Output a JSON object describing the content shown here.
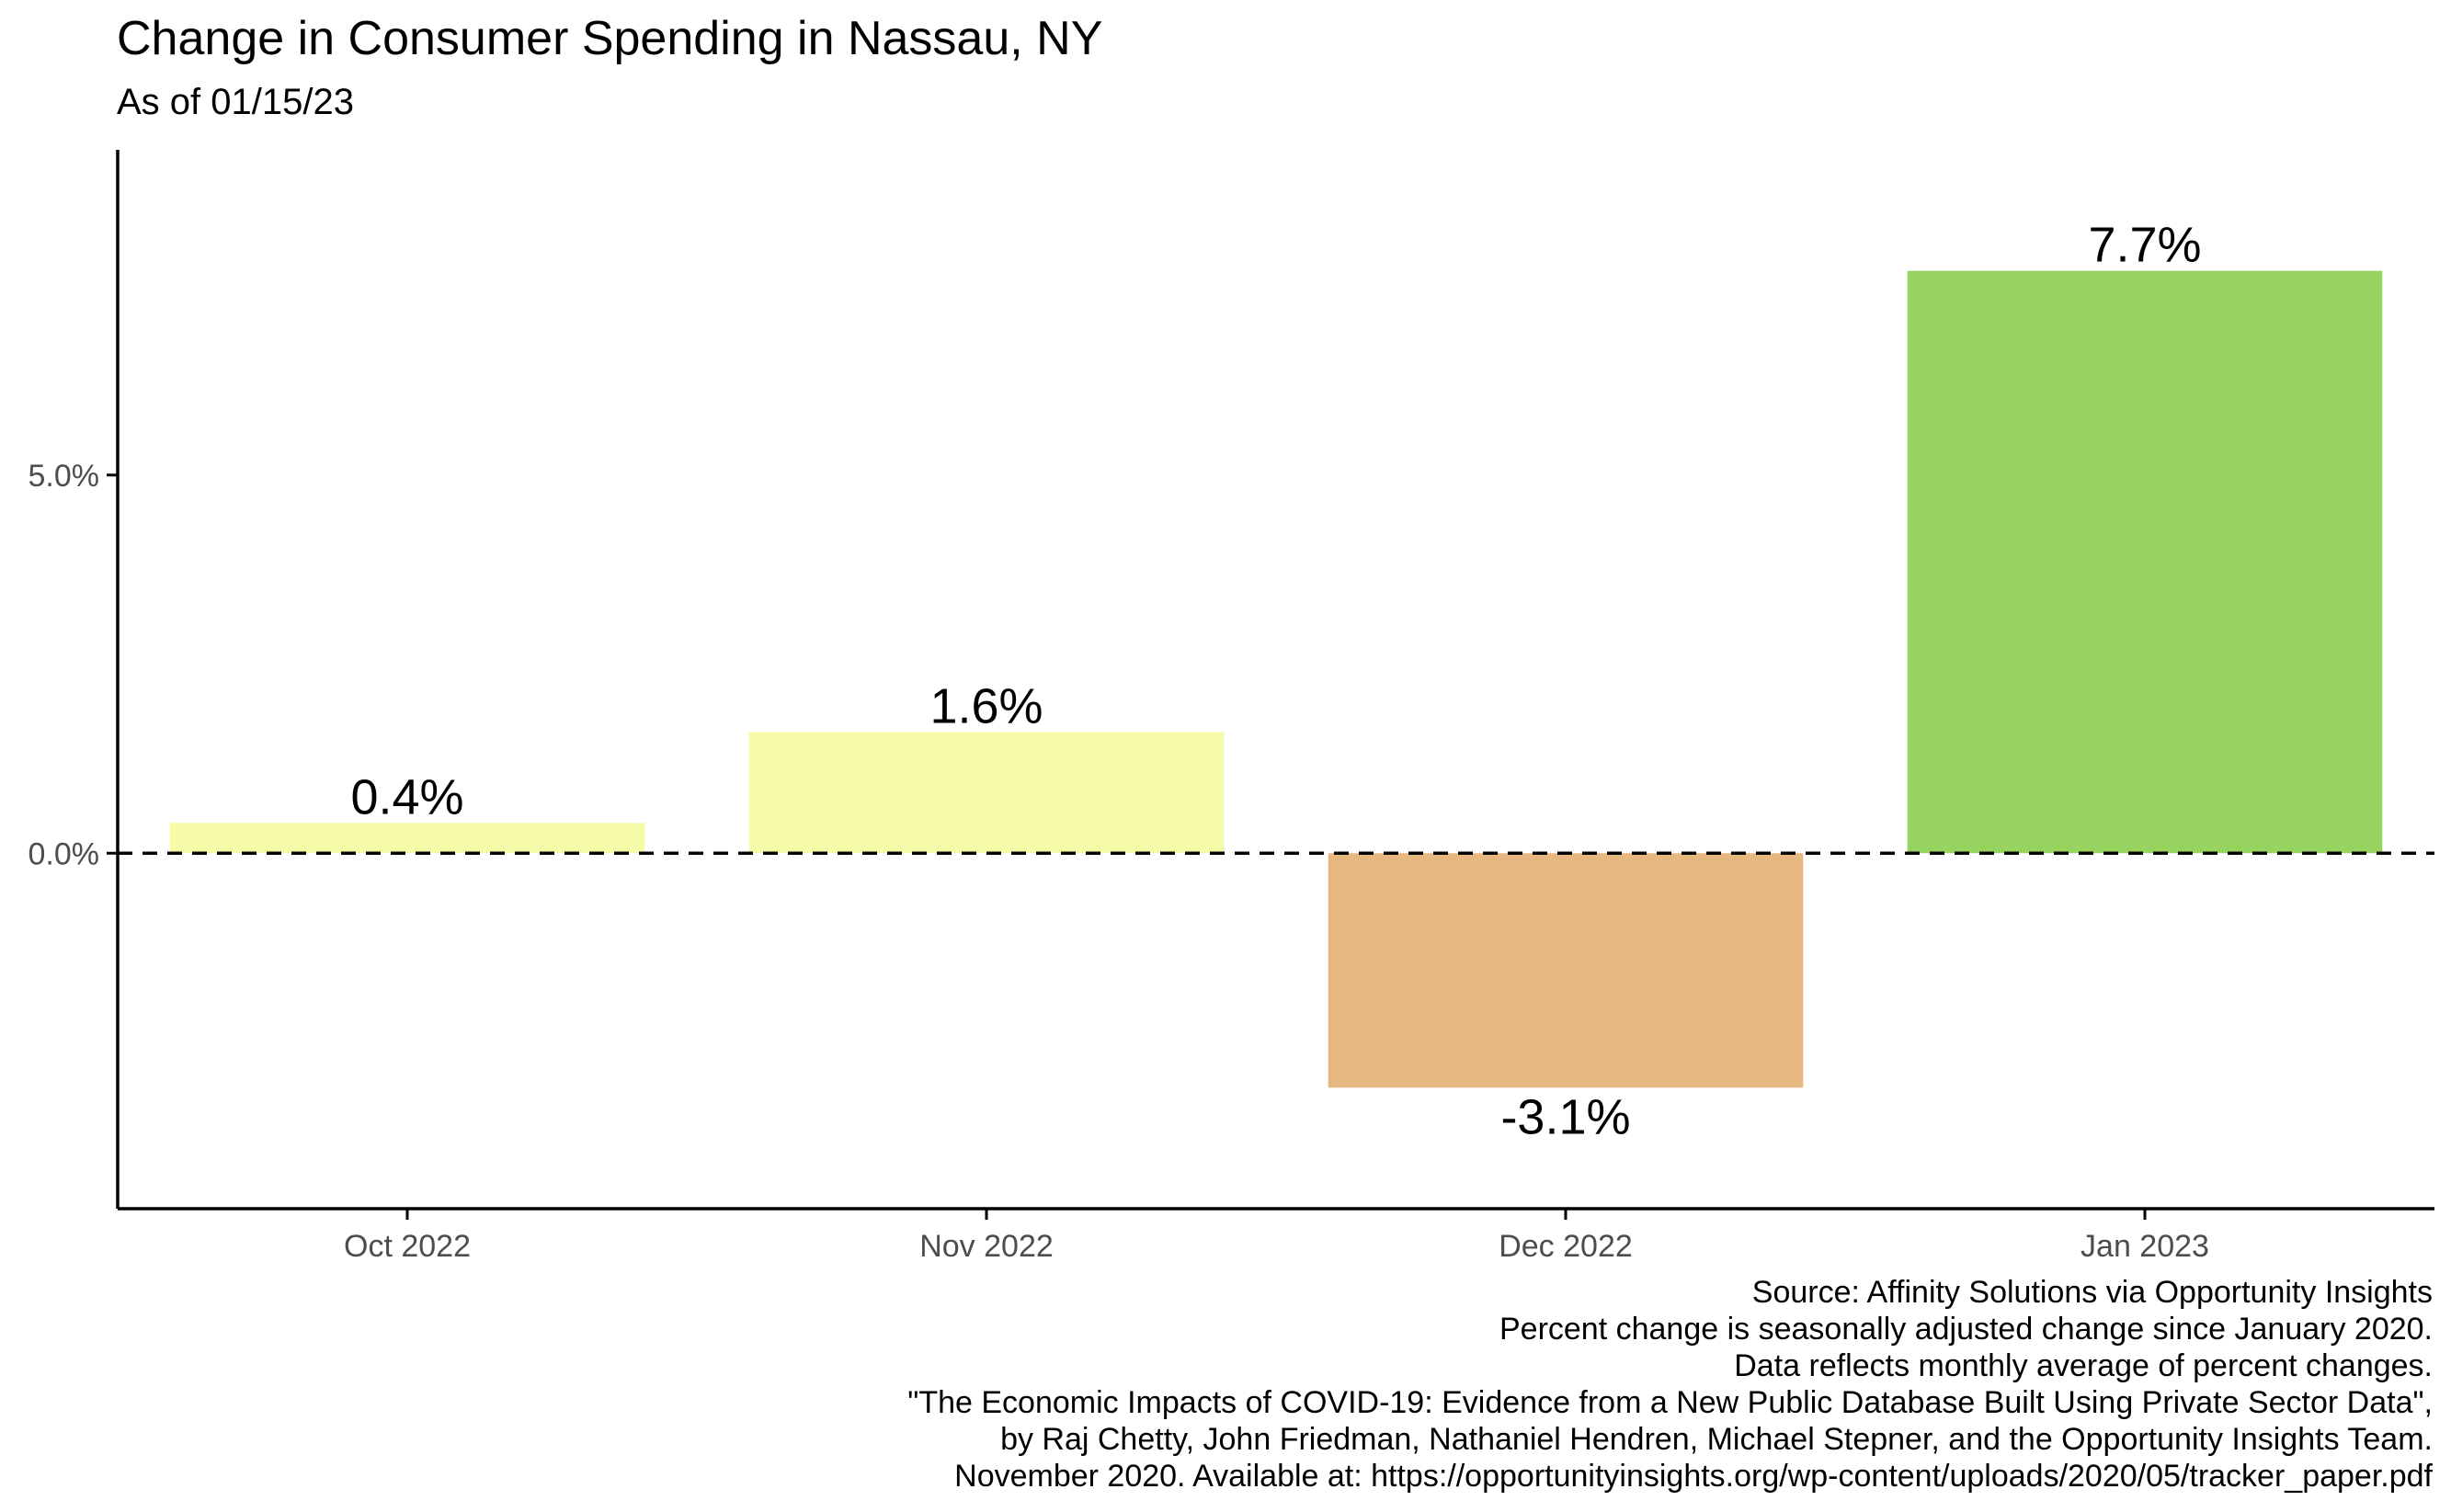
{
  "chart_data": {
    "type": "bar",
    "title": "Change in Consumer Spending in Nassau, NY",
    "subtitle": "As of 01/15/23",
    "categories": [
      "Oct 2022",
      "Nov 2022",
      "Dec 2022",
      "Jan 2023"
    ],
    "values": [
      0.4,
      1.6,
      -3.1,
      7.7
    ],
    "data_labels": [
      "0.4%",
      "1.6%",
      "-3.1%",
      "7.7%"
    ],
    "bar_colors": [
      "#f5fba6",
      "#f5fba6",
      "#e6b880",
      "#96d35f"
    ],
    "ylim": [
      -4.7,
      9.3
    ],
    "yticks": [
      0,
      5
    ],
    "ytick_labels": [
      "0.0%",
      "5.0%"
    ],
    "reference_line": {
      "y": 0,
      "style": "dashed"
    },
    "grid": false,
    "legend": "none"
  },
  "caption": [
    "Source: Affinity Solutions via Opportunity Insights",
    "Percent change is seasonally adjusted change since January 2020.",
    "Data reflects monthly average of percent changes.",
    "\"The Economic Impacts of COVID-19: Evidence from a New Public Database Built Using Private Sector Data\",",
    "by Raj Chetty, John Friedman, Nathaniel Hendren, Michael Stepner, and the Opportunity Insights Team.",
    "November 2020. Available at: https://opportunityinsights.org/wp-content/uploads/2020/05/tracker_paper.pdf"
  ]
}
